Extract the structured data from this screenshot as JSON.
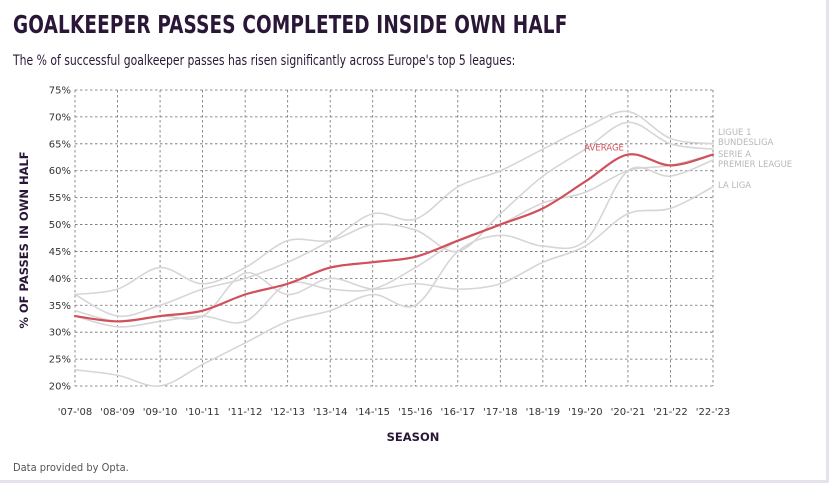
{
  "header": {
    "title": "GOALKEEPER PASSES COMPLETED INSIDE OWN HALF",
    "subtitle": "The % of successful goalkeeper passes has risen significantly across Europe's top 5 leagues:"
  },
  "footer": {
    "source": "Data provided by Opta."
  },
  "colors": {
    "average": "#d0505c",
    "league": "#d6d6d6",
    "grid": "#6e6e6e",
    "text": "#2a1738"
  },
  "chart_data": {
    "type": "line",
    "title": "GOALKEEPER PASSES COMPLETED INSIDE OWN HALF",
    "xlabel": "SEASON",
    "ylabel": "% OF PASSES IN OWN HALF",
    "ylim": [
      20,
      75
    ],
    "yticks": [
      "20%",
      "25%",
      "30%",
      "35%",
      "40%",
      "45%",
      "50%",
      "55%",
      "60%",
      "65%",
      "70%",
      "75%"
    ],
    "ytick_values": [
      20,
      25,
      30,
      35,
      40,
      45,
      50,
      55,
      60,
      65,
      70,
      75
    ],
    "grid": true,
    "categories": [
      "'07-'08",
      "'08-'09",
      "'09-'10",
      "'10-'11",
      "'11-'12",
      "'12-'13",
      "'13-'14",
      "'14-'15",
      "'15-'16",
      "'16-'17",
      "'17-'18",
      "'18-'19",
      "'19-'20",
      "'20-'21",
      "'21-'22",
      "'22-'23"
    ],
    "series": [
      {
        "name": "LIGUE 1",
        "label": "LIGUE 1",
        "highlight": false,
        "values": [
          37,
          33,
          35,
          38,
          40,
          43,
          47,
          52,
          51,
          57,
          60,
          64,
          68,
          71,
          66,
          65
        ]
      },
      {
        "name": "BUNDESLIGA",
        "label": "BUNDESLIGA",
        "highlight": false,
        "values": [
          37,
          38,
          42,
          39,
          42,
          47,
          47,
          50,
          49,
          45,
          52,
          59,
          64,
          69,
          65,
          64
        ]
      },
      {
        "name": "SERIE A",
        "label": "SERIE A",
        "highlight": false,
        "values": [
          33,
          31,
          32,
          33,
          32,
          39,
          38,
          38,
          42,
          47,
          50,
          54,
          56,
          60,
          61,
          63
        ]
      },
      {
        "name": "PREMIER LEAGUE",
        "label": "PREMIER LEAGUE",
        "highlight": false,
        "values": [
          23,
          22,
          20,
          24,
          28,
          32,
          34,
          37,
          35,
          45,
          48,
          46,
          47,
          60,
          59,
          62
        ]
      },
      {
        "name": "LA LIGA",
        "label": "LA LIGA",
        "highlight": false,
        "values": [
          34,
          32,
          33,
          33,
          41,
          37,
          40,
          38,
          39,
          38,
          39,
          43,
          46,
          52,
          53,
          57
        ]
      },
      {
        "name": "AVERAGE",
        "label": "AVERAGE",
        "highlight": true,
        "values": [
          33,
          32,
          33,
          34,
          37,
          39,
          42,
          43,
          44,
          47,
          50,
          53,
          58,
          63,
          61,
          63
        ]
      }
    ]
  }
}
